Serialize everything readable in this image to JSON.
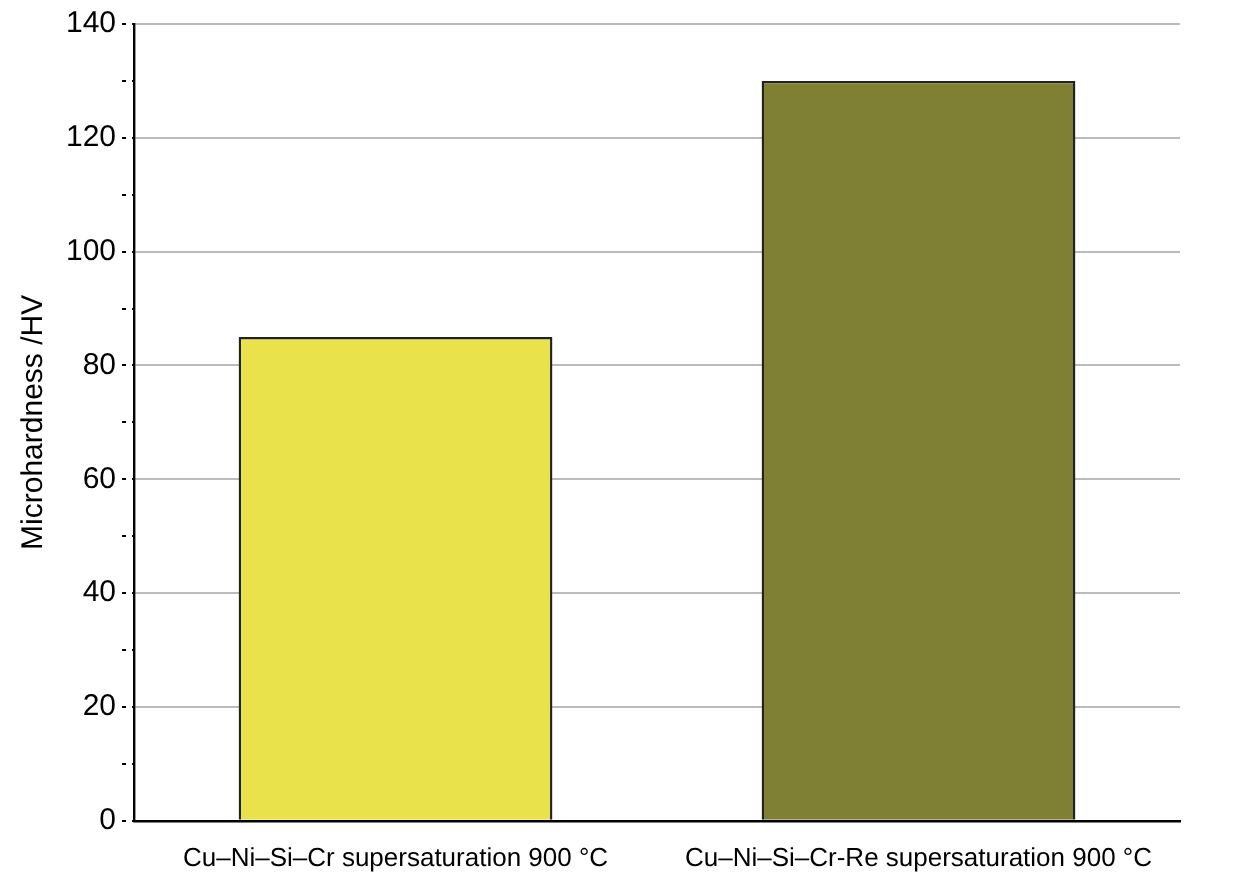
{
  "chart_data": {
    "type": "bar",
    "ylabel": "Microhardness /HV",
    "categories": [
      "Cu–Ni–Si–Cr supersaturation 900 °C",
      "Cu–Ni–Si–Cr-Re supersaturation 900 °C"
    ],
    "values": [
      85,
      130
    ],
    "colors": [
      "#e9e24a",
      "#7f8033"
    ],
    "ylim": [
      0,
      140
    ],
    "yticks": [
      0,
      {
        "value": 10,
        "label": null
      },
      20,
      {
        "value": 30,
        "label": null
      },
      40,
      {
        "value": 50,
        "label": null
      },
      60,
      {
        "value": 70,
        "label": null
      },
      80,
      {
        "value": 90,
        "label": null
      },
      100,
      {
        "value": 110,
        "label": null
      },
      120,
      {
        "value": 130,
        "label": null
      },
      140
    ],
    "grid": "y"
  }
}
